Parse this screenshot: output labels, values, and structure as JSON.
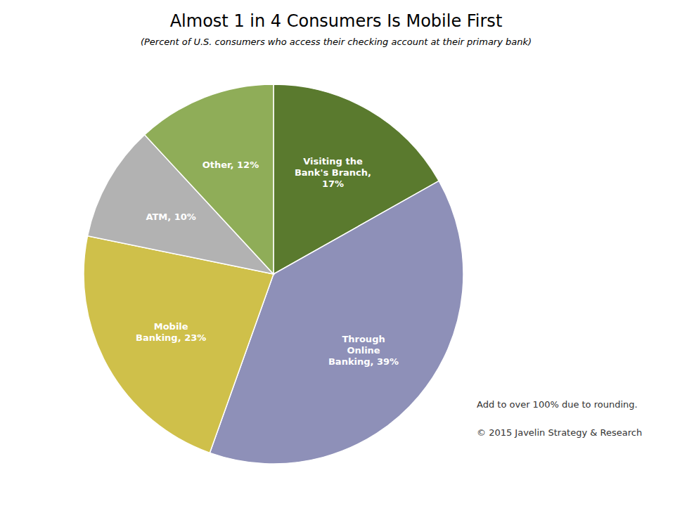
{
  "chart_data": {
    "type": "pie",
    "title": "Almost 1 in 4 Consumers Is Mobile First",
    "subtitle": "(Percent of U.S. consumers who access their checking account at their primary bank)",
    "categories": [
      "Visiting the\nBank's Branch,\n17%",
      "Through\nOnline\nBanking, 39%",
      "Mobile\nBanking, 23%",
      "ATM, 10%",
      "Other, 12%"
    ],
    "values": [
      17,
      39,
      23,
      10,
      12
    ],
    "colors": [
      "#5a7a2e",
      "#8e90b8",
      "#cfc04a",
      "#b2b2b2",
      "#8fad58"
    ],
    "annotations": [
      "Add to over 100% due to rounding.",
      "© 2015 Javelin Strategy & Research"
    ]
  }
}
